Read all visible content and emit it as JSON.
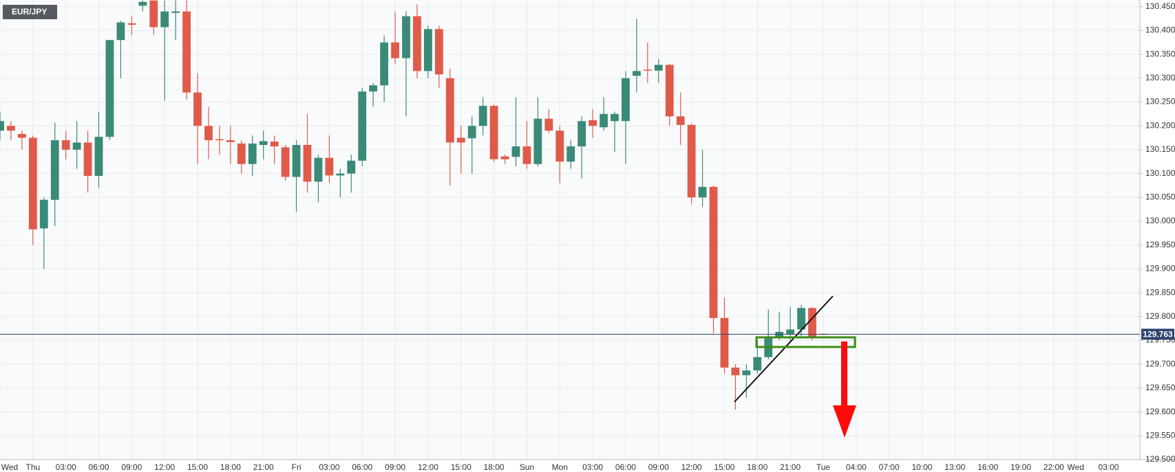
{
  "chart_data": {
    "type": "candlestick",
    "title": "EUR/JPY",
    "categories": [
      "Wed",
      null,
      null,
      "Thu",
      null,
      null,
      "03:00",
      null,
      null,
      "06:00",
      null,
      null,
      "09:00",
      null,
      null,
      "12:00",
      null,
      null,
      "15:00",
      null,
      null,
      "18:00",
      null,
      null,
      "21:00",
      null,
      null,
      "Fri",
      null,
      null,
      "03:00",
      null,
      null,
      "06:00",
      null,
      null,
      "09:00",
      null,
      null,
      "12:00",
      null,
      null,
      "15:00",
      null,
      null,
      "18:00",
      null,
      null,
      "Sun",
      null,
      null,
      "Mon",
      null,
      null,
      "03:00",
      null,
      null,
      "06:00",
      null,
      null,
      "09:00",
      null,
      null,
      "12:00",
      null,
      null,
      "15:00",
      null,
      null,
      "18:00",
      null,
      null,
      "21:00",
      null,
      null,
      "Tue",
      null,
      null,
      "04:00",
      null,
      null,
      "07:00",
      null,
      null,
      "10:00",
      null,
      null,
      "13:00",
      null,
      null,
      "16:00",
      null,
      null,
      "19:00",
      null,
      null,
      "22:00",
      null,
      "Wed",
      null,
      null,
      "03:00",
      null,
      null
    ],
    "open": [
      130.19,
      130.2,
      130.183,
      130.175,
      129.985,
      130.045,
      130.17,
      130.15,
      130.165,
      130.095,
      130.177,
      130.38,
      130.415,
      130.452,
      130.463,
      130.407,
      130.437,
      130.44,
      130.27,
      130.2,
      130.172,
      130.17,
      130.163,
      130.12,
      130.16,
      130.167,
      130.155,
      130.093,
      130.16,
      130.083,
      130.133,
      130.096,
      130.1,
      130.127,
      130.272,
      130.285,
      130.375,
      130.342,
      130.43,
      130.315,
      130.403,
      130.3,
      130.175,
      130.174,
      130.2,
      130.242,
      130.136,
      130.135,
      130.157,
      130.12,
      130.215,
      130.19,
      130.125,
      130.157,
      130.212,
      130.197,
      130.21,
      130.21,
      130.305,
      130.318,
      130.316,
      130.328,
      130.22,
      130.202,
      130.05,
      130.072,
      129.797,
      129.693,
      129.677,
      129.687,
      129.715,
      129.757,
      129.763,
      129.773,
      129.818,
      129.764,
      null,
      null,
      null,
      null,
      null,
      null,
      null,
      null,
      null,
      null,
      null,
      null,
      null,
      null,
      null,
      null,
      null,
      null,
      null,
      null,
      null,
      null,
      null,
      null,
      null,
      null,
      null,
      null
    ],
    "high": [
      130.23,
      130.21,
      130.19,
      130.18,
      130.05,
      130.207,
      130.19,
      130.21,
      130.19,
      130.23,
      130.38,
      130.42,
      130.43,
      130.463,
      130.463,
      130.463,
      130.463,
      130.463,
      130.31,
      130.24,
      130.2,
      130.2,
      130.17,
      130.18,
      130.19,
      130.18,
      130.16,
      130.17,
      130.225,
      130.14,
      130.18,
      130.11,
      130.14,
      130.28,
      130.29,
      130.39,
      130.44,
      130.44,
      130.455,
      130.41,
      130.41,
      130.32,
      130.2,
      130.22,
      130.26,
      130.245,
      130.14,
      130.26,
      130.21,
      130.26,
      130.235,
      130.2,
      130.17,
      130.22,
      130.235,
      130.26,
      130.23,
      130.315,
      130.425,
      130.375,
      130.34,
      130.33,
      130.27,
      130.205,
      130.15,
      130.075,
      129.84,
      129.7,
      129.7,
      129.75,
      129.815,
      129.81,
      129.82,
      129.825,
      129.82,
      129.765,
      null,
      null,
      null,
      null,
      null,
      null,
      null,
      null,
      null,
      null,
      null,
      null,
      null,
      null,
      null,
      null,
      null,
      null,
      null,
      null,
      null,
      null,
      null,
      null,
      null,
      null,
      null,
      null
    ],
    "low": [
      130.17,
      130.17,
      130.15,
      129.95,
      129.9,
      129.99,
      130.13,
      130.11,
      130.06,
      130.07,
      130.17,
      130.3,
      130.39,
      130.44,
      130.39,
      130.253,
      130.38,
      130.255,
      130.12,
      130.13,
      130.14,
      130.12,
      130.1,
      130.095,
      130.13,
      130.12,
      130.085,
      130.02,
      130.06,
      130.04,
      130.08,
      130.05,
      130.06,
      130.115,
      130.24,
      130.25,
      130.33,
      130.22,
      130.3,
      130.3,
      130.28,
      130.075,
      130.1,
      130.1,
      130.18,
      130.125,
      130.12,
      130.115,
      130.11,
      130.115,
      130.185,
      130.08,
      130.11,
      130.09,
      130.175,
      130.19,
      130.145,
      130.12,
      130.27,
      130.29,
      130.29,
      130.2,
      130.16,
      130.035,
      130.03,
      129.765,
      129.68,
      129.605,
      129.63,
      129.68,
      129.71,
      129.75,
      129.75,
      129.755,
      129.75,
      129.762,
      null,
      null,
      null,
      null,
      null,
      null,
      null,
      null,
      null,
      null,
      null,
      null,
      null,
      null,
      null,
      null,
      null,
      null,
      null,
      null,
      null,
      null,
      null,
      null,
      null,
      null,
      null,
      null
    ],
    "close": [
      130.21,
      130.19,
      130.175,
      129.983,
      130.045,
      130.17,
      130.15,
      130.165,
      130.095,
      130.177,
      130.38,
      130.417,
      130.412,
      130.46,
      130.407,
      130.44,
      130.44,
      130.27,
      130.2,
      130.17,
      130.17,
      130.166,
      130.12,
      130.163,
      130.168,
      130.157,
      130.093,
      130.16,
      130.083,
      130.133,
      130.096,
      130.1,
      130.127,
      130.272,
      130.285,
      130.375,
      130.342,
      130.43,
      130.315,
      130.403,
      130.308,
      130.165,
      130.165,
      130.2,
      130.242,
      130.13,
      130.13,
      130.157,
      130.12,
      130.215,
      130.19,
      130.125,
      130.157,
      130.21,
      130.2,
      130.225,
      130.225,
      130.3,
      130.315,
      130.316,
      130.328,
      130.22,
      130.202,
      130.05,
      130.072,
      129.797,
      129.693,
      129.677,
      129.687,
      129.715,
      129.757,
      129.768,
      129.773,
      129.818,
      129.757,
      129.763,
      null,
      null,
      null,
      null,
      null,
      null,
      null,
      null,
      null,
      null,
      null,
      null,
      null,
      null,
      null,
      null,
      null,
      null,
      null,
      null,
      null,
      null,
      null,
      null,
      null,
      null,
      null,
      null
    ],
    "up_color": "#3a8a78",
    "down_color": "#e05a4a",
    "last_price": 129.763,
    "last_price_color": "#2e4470",
    "ylim": [
      129.5,
      130.464
    ],
    "yticks": [
      {
        "value": 129.5,
        "label": "129.500"
      },
      {
        "value": 129.55,
        "label": "129.550"
      },
      {
        "value": 129.6,
        "label": "129.600"
      },
      {
        "value": 129.65,
        "label": "129.650"
      },
      {
        "value": 129.7,
        "label": "129.700"
      },
      {
        "value": 129.75,
        "label": "129.750"
      },
      {
        "value": 129.8,
        "label": "129.800"
      },
      {
        "value": 129.85,
        "label": "129.850"
      },
      {
        "value": 129.9,
        "label": "129.900"
      },
      {
        "value": 129.95,
        "label": "129.950"
      },
      {
        "value": 130.0,
        "label": "130.000"
      },
      {
        "value": 130.05,
        "label": "130.050"
      },
      {
        "value": 130.1,
        "label": "130.100"
      },
      {
        "value": 130.15,
        "label": "130.150"
      },
      {
        "value": 130.2,
        "label": "130.200"
      },
      {
        "value": 130.25,
        "label": "130.250"
      },
      {
        "value": 130.3,
        "label": "130.300"
      },
      {
        "value": 130.35,
        "label": "130.350"
      },
      {
        "value": 130.4,
        "label": "130.400"
      },
      {
        "value": 130.45,
        "label": "130.450"
      }
    ],
    "grid": true
  }
}
